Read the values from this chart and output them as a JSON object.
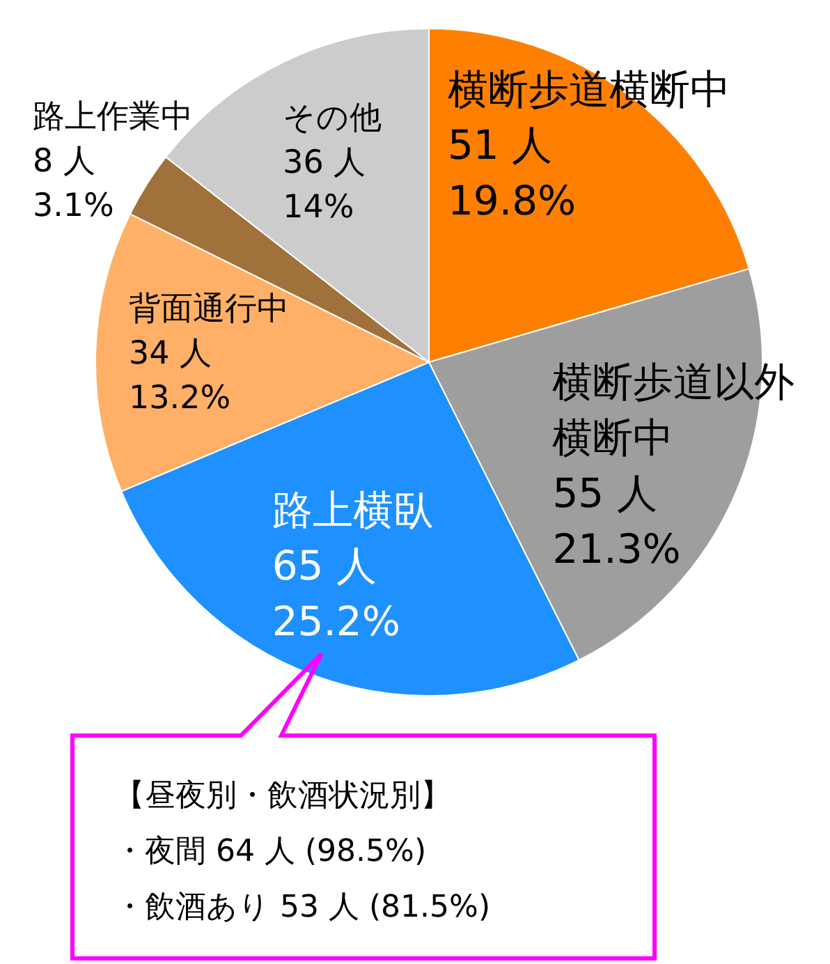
{
  "chart_data": {
    "type": "pie",
    "categories": [
      "横断歩道横断中",
      "横断歩道以外横断中",
      "路上横臥",
      "背面通行中",
      "路上作業中",
      "その他"
    ],
    "values": [
      51,
      55,
      65,
      34,
      8,
      36
    ],
    "colors": [
      "#ff8000",
      "#9e9e9e",
      "#1e90ff",
      "#ffb066",
      "#a0713a",
      "#cccccc"
    ],
    "value_labels": [
      "51 人\n19.8%",
      "55 人\n21.3%",
      "65 人\n25.2%",
      "34 人\n13.2%",
      "8 人\n3.1%",
      "36 人\n14%"
    ],
    "annotations": [
      {
        "text": "【昼夜別・飲酒状況別】",
        "x": "路上横臥"
      },
      "・夜間 64 人 (98.5%)",
      "・飲酒あり 53 人 (81.5%)"
    ]
  }
}
